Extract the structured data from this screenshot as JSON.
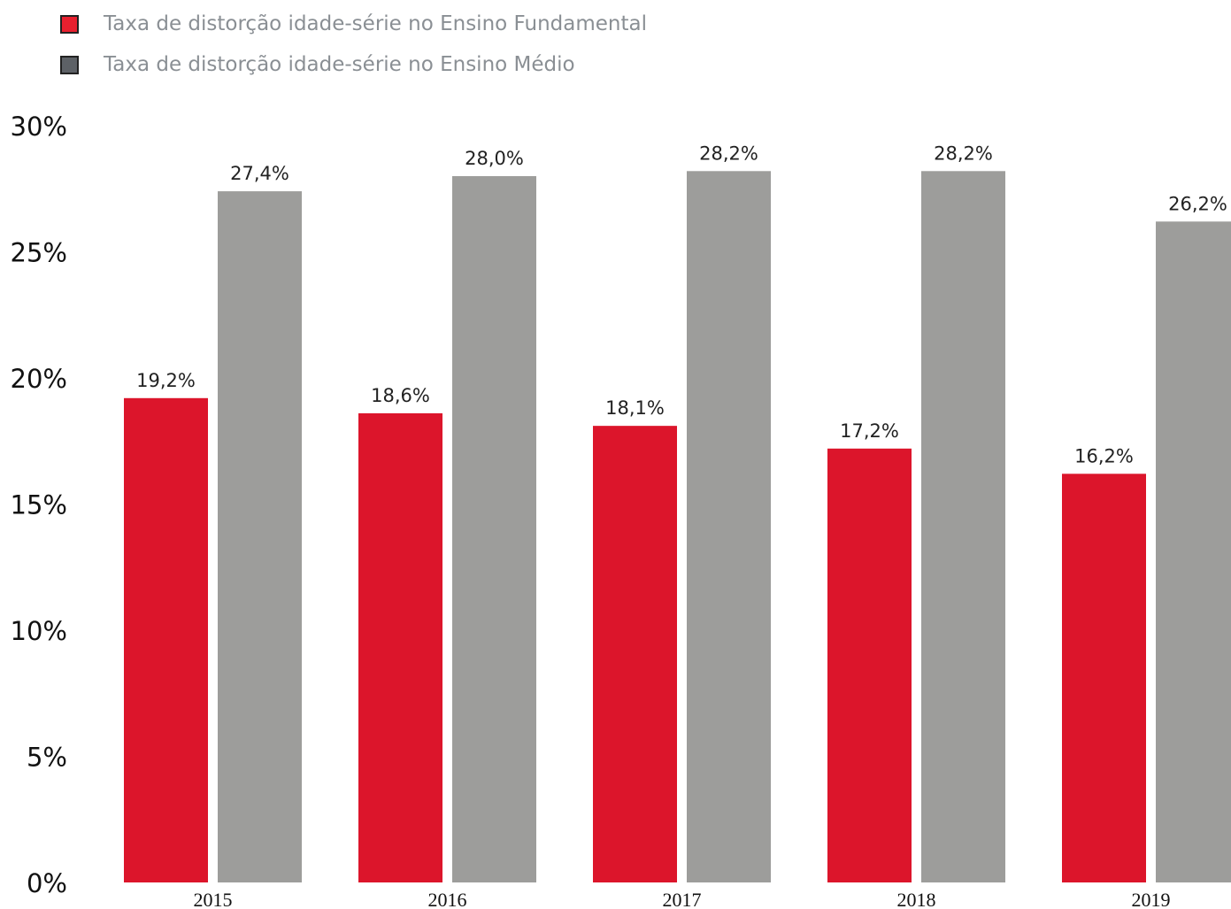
{
  "chart_data": {
    "type": "bar",
    "title": "",
    "xlabel": "",
    "ylabel": "",
    "categories": [
      "2015",
      "2016",
      "2017",
      "2018",
      "2019"
    ],
    "series": [
      {
        "name": "Taxa de distorção idade-série no Ensino Fundamental",
        "values": [
          19.2,
          18.6,
          18.1,
          17.2,
          16.2
        ],
        "labels": [
          "19,2%",
          "18,6%",
          "18,1%",
          "17,2%",
          "16,2%"
        ],
        "color": "#dc152b",
        "legend_color": "#e8202f"
      },
      {
        "name": "Taxa de distorção idade-série no Ensino Médio",
        "values": [
          27.4,
          28.0,
          28.2,
          28.2,
          26.2
        ],
        "labels": [
          "27,4%",
          "28,0%",
          "28,2%",
          "28,2%",
          "26,2%"
        ],
        "color": "#9d9d9b",
        "legend_color": "#5d6166"
      }
    ],
    "yticks": [
      0,
      5,
      10,
      15,
      20,
      25,
      30
    ],
    "ytick_labels": [
      "0%",
      "5%",
      "10%",
      "15%",
      "20%",
      "25%",
      "30%"
    ],
    "ylim": [
      0,
      30
    ],
    "grid": false,
    "legend_position": "top-left"
  }
}
